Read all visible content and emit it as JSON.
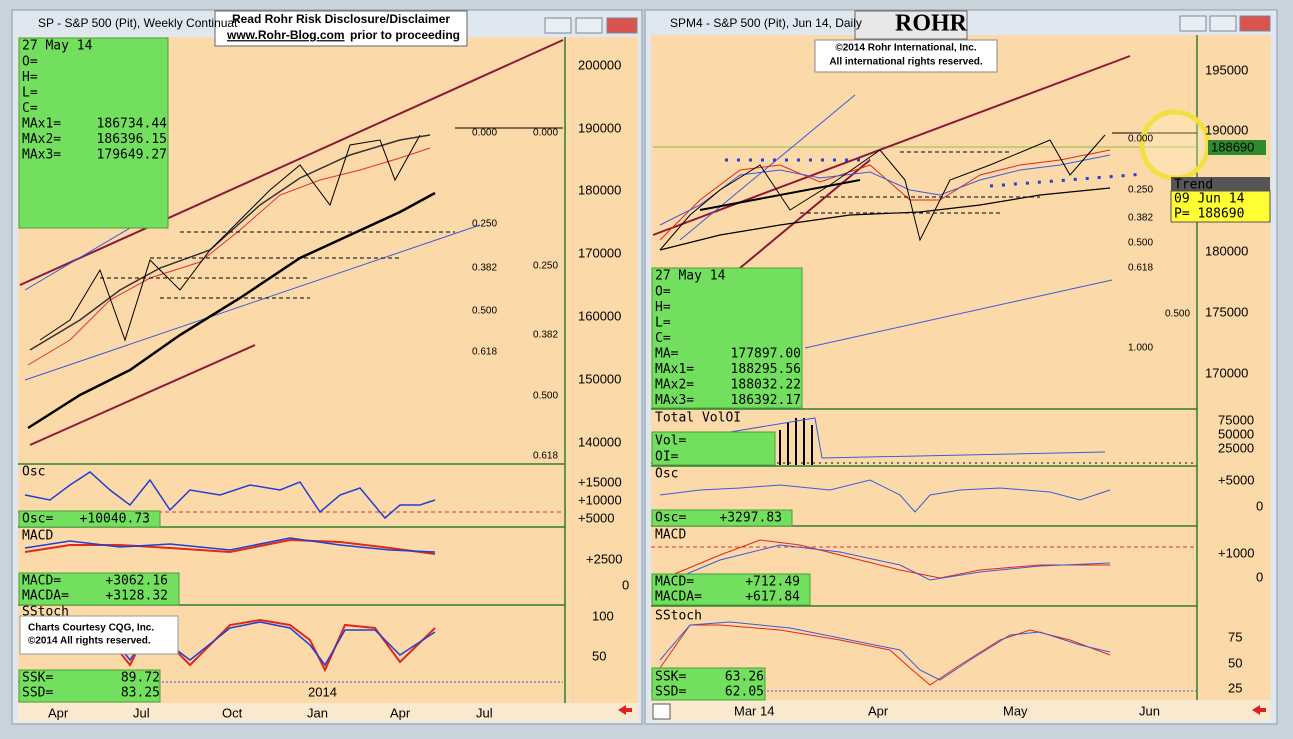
{
  "left": {
    "title": "SP - S&P 500 (Pit), Weekly Continuat",
    "info": {
      "date": "27 May 14",
      "rows": [
        [
          "O="
        ],
        [
          "H="
        ],
        [
          "L="
        ],
        [
          "C="
        ],
        [
          "MAx1=",
          "186734.44"
        ],
        [
          "MAx2=",
          "186396.15"
        ],
        [
          "MAx3=",
          "179649.27"
        ]
      ]
    },
    "price_axis": [
      "200000",
      "190000",
      "180000",
      "170000",
      "160000",
      "150000",
      "140000"
    ],
    "fib": [
      "0.000",
      "0.000",
      "0.250",
      "0.250",
      "0.382",
      "0.382",
      "0.500",
      "0.500",
      "0.618",
      "0.618"
    ],
    "osc": {
      "title": "Osc",
      "rows": [
        [
          "Osc=",
          "+10040.73"
        ]
      ],
      "axis": [
        "+15000",
        "+10000",
        "+5000"
      ]
    },
    "macd": {
      "title": "MACD",
      "rows": [
        [
          "MACD=",
          "+3062.16"
        ],
        [
          "MACDA=",
          "+3128.32"
        ]
      ],
      "axis": [
        "+2500",
        "0"
      ]
    },
    "sstoch": {
      "title": "SStoch",
      "rows": [
        [
          "SSK=",
          "89.72"
        ],
        [
          "SSD=",
          "83.25"
        ]
      ],
      "axis": [
        "100",
        "50"
      ],
      "year": "2014"
    },
    "x_axis": [
      "Apr",
      "Jul",
      "Oct",
      "Jan",
      "Apr",
      "Jul"
    ]
  },
  "disclaimer": {
    "line1": "Read Rohr Risk Disclosure/Disclaimer",
    "link": "www.Rohr-Blog.com",
    "rest": "prior to proceeding"
  },
  "credit": [
    "Charts Courtesy CQG, Inc.",
    "©2014 All rights reserved."
  ],
  "right": {
    "title": "SPM4 - S&P 500 (Pit), Jun 14, Daily",
    "logo": "ROHR",
    "copyright": [
      "©2014  Rohr International, Inc.",
      "All international rights reserved."
    ],
    "price_axis": [
      "195000",
      "190000",
      "180000",
      "175000",
      "170000"
    ],
    "price_tag": "188690",
    "tooltip": [
      "Trend",
      "09  Jun  14",
      "P=   188690"
    ],
    "fib": [
      "0.000",
      "0.250",
      "0.382",
      "0.500",
      "0.618",
      "0.500",
      "1.000"
    ],
    "info": {
      "date": "27 May 14",
      "rows": [
        [
          "O="
        ],
        [
          "H="
        ],
        [
          "L="
        ],
        [
          "C="
        ],
        [
          "MA=",
          "177897.00"
        ],
        [
          "MAx1=",
          "188295.56"
        ],
        [
          "MAx2=",
          "188032.22"
        ],
        [
          "MAx3=",
          "186392.17"
        ]
      ]
    },
    "vol": {
      "title": "Total VolOI",
      "rows": [
        [
          "Vol="
        ],
        [
          "OI="
        ]
      ],
      "axis": [
        "75000",
        "50000",
        "25000"
      ]
    },
    "osc": {
      "title": "Osc",
      "rows": [
        [
          "Osc=",
          "+3297.83"
        ]
      ],
      "axis": [
        "+5000",
        "0"
      ]
    },
    "macd": {
      "title": "MACD",
      "rows": [
        [
          "MACD=",
          "+712.49"
        ],
        [
          "MACDA=",
          "+617.84"
        ]
      ],
      "axis": [
        "+1000",
        "0"
      ]
    },
    "sstoch": {
      "title": "SStoch",
      "rows": [
        [
          "SSK=",
          "63.26"
        ],
        [
          "SSD=",
          "62.05"
        ]
      ],
      "axis": [
        "75",
        "50",
        "25"
      ]
    },
    "x_axis": [
      "Mar 14",
      "Apr",
      "May",
      "Jun"
    ]
  }
}
